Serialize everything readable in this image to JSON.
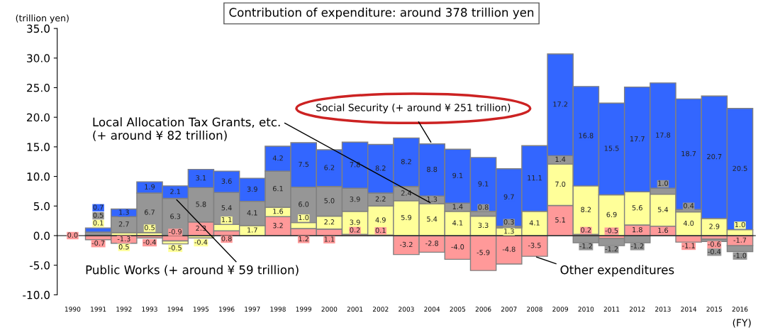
{
  "chart_data": {
    "type": "bar",
    "stacked": true,
    "title": "Contribution of expenditure: around 378 trillion yen",
    "ylabel": "(trillion yen)",
    "xlabel": "(FY)",
    "categories": [
      "1990",
      "1991",
      "1992",
      "1993",
      "1994",
      "1995",
      "1996",
      "1997",
      "1998",
      "1999",
      "2000",
      "2001",
      "2002",
      "2003",
      "2004",
      "2005",
      "2006",
      "2007",
      "2008",
      "2009",
      "2010",
      "2011",
      "2012",
      "2013",
      "2014",
      "2015",
      "2016"
    ],
    "series": [
      {
        "color": "#ff9999",
        "values": [
          0.0,
          -0.7,
          -1.3,
          -0.4,
          -0.9,
          2.3,
          0.8,
          null,
          3.2,
          1.2,
          1.1,
          0.2,
          0.1,
          -3.2,
          -2.8,
          -4.0,
          -5.9,
          -4.8,
          -3.5,
          5.1,
          0.2,
          -0.5,
          1.8,
          1.6,
          -1.1,
          -0.6,
          -1.7
        ],
        "value_labels": [
          "0.0",
          "-0.7",
          "-1.3",
          "-0.4",
          "-0.9",
          "2.3",
          "0.8",
          null,
          "3.2",
          "1.2",
          "1.1",
          "0.2",
          "0.1",
          "-3.2",
          "-2.8",
          "-4.0",
          "-5.9",
          "-4.8",
          "-3.5",
          "5.1",
          "0.2",
          "-0.5",
          "1.8",
          "1.6",
          "-1.1",
          "-0.6",
          "-1.7"
        ]
      },
      {
        "color": "#ffff99",
        "values": [
          0.0,
          0.1,
          0.5,
          0.5,
          -0.5,
          -0.4,
          1.1,
          1.7,
          1.6,
          1.0,
          2.2,
          3.9,
          4.9,
          5.9,
          5.4,
          4.1,
          3.3,
          1.3,
          4.1,
          7.0,
          8.2,
          6.9,
          5.6,
          5.4,
          4.0,
          2.9,
          1.0
        ],
        "value_labels": [
          null,
          "0.1",
          "0.5",
          "0.5",
          "-0.5",
          "-0.4",
          "1.1",
          "1.7",
          "1.6",
          "1.0",
          "2.2",
          "3.9",
          "4.9",
          "5.9",
          "5.4",
          "4.1",
          "3.3",
          "1.3",
          "4.1",
          "7.0",
          "8.2",
          "6.9",
          "5.6",
          "5.4",
          "4.0",
          "2.9",
          "1.0"
        ]
      },
      {
        "color": "#969696",
        "values": [
          0.0,
          0.5,
          2.7,
          6.7,
          6.3,
          5.8,
          5.4,
          4.1,
          6.1,
          6.0,
          5.0,
          3.9,
          2.2,
          2.4,
          1.3,
          1.4,
          0.8,
          0.3,
          null,
          1.4,
          -1.2,
          -1.2,
          -1.2,
          1.0,
          0.4,
          -0.4,
          -1.0
        ],
        "value_labels": [
          null,
          "0.5",
          "2.7",
          "6.7",
          "6.3",
          "5.8",
          "5.4",
          "4.1",
          "6.1",
          "6.0",
          "5.0",
          "3.9",
          "2.2",
          "2.4",
          "1.3",
          "1.4",
          "0.8",
          "0.3",
          null,
          "1.4",
          "-1.2",
          "-1.2",
          "-1.2",
          "1.0",
          "0.4",
          "-0.4",
          "-1.0"
        ]
      },
      {
        "color": "#3366ff",
        "values": [
          0.0,
          0.7,
          1.3,
          1.9,
          2.1,
          3.1,
          3.6,
          3.9,
          4.2,
          7.5,
          6.2,
          7.8,
          8.2,
          8.2,
          8.8,
          9.1,
          9.1,
          9.7,
          11.1,
          17.2,
          16.8,
          15.5,
          17.7,
          17.8,
          18.7,
          20.7,
          20.5
        ],
        "value_labels": [
          null,
          "0.7",
          "1.3",
          "1.9",
          "2.1",
          "3.1",
          "3.6",
          "3.9",
          "4.2",
          "7.5",
          "6.2",
          "7.8",
          "8.2",
          "8.2",
          "8.8",
          "9.1",
          "9.1",
          "9.7",
          "11.1",
          "17.2",
          "16.8",
          "15.5",
          "17.7",
          "17.8",
          "18.7",
          "20.7",
          "20.5"
        ]
      }
    ],
    "ylim": [
      -10,
      35
    ],
    "yticks": [
      {
        "value": -10,
        "label": "-10.0"
      },
      {
        "value": -5,
        "label": "-5.0"
      },
      {
        "value": 0,
        "label": "0.0"
      },
      {
        "value": 5,
        "label": "5.0"
      },
      {
        "value": 10,
        "label": "10.0"
      },
      {
        "value": 15,
        "label": "15.0"
      },
      {
        "value": 20,
        "label": "20.0"
      },
      {
        "value": 25,
        "label": "25.0"
      },
      {
        "value": 30,
        "label": "30.0"
      },
      {
        "value": 35,
        "label": "35.0"
      }
    ],
    "annotations": [
      {
        "text": "Social Security (+ around ¥ 251 trillion)",
        "x": "2004",
        "y": 15.5
      },
      {
        "text": "Local Allocation Tax Grants, etc.\n(+ around ¥ 82 trillion)",
        "x": "2004",
        "y": 5.4
      },
      {
        "text": "Public Works (+ around ¥ 59 trillion)",
        "x": "1994",
        "y": 6.3
      },
      {
        "text": "Other expenditures",
        "x": "2008",
        "y": -3.5
      }
    ]
  }
}
